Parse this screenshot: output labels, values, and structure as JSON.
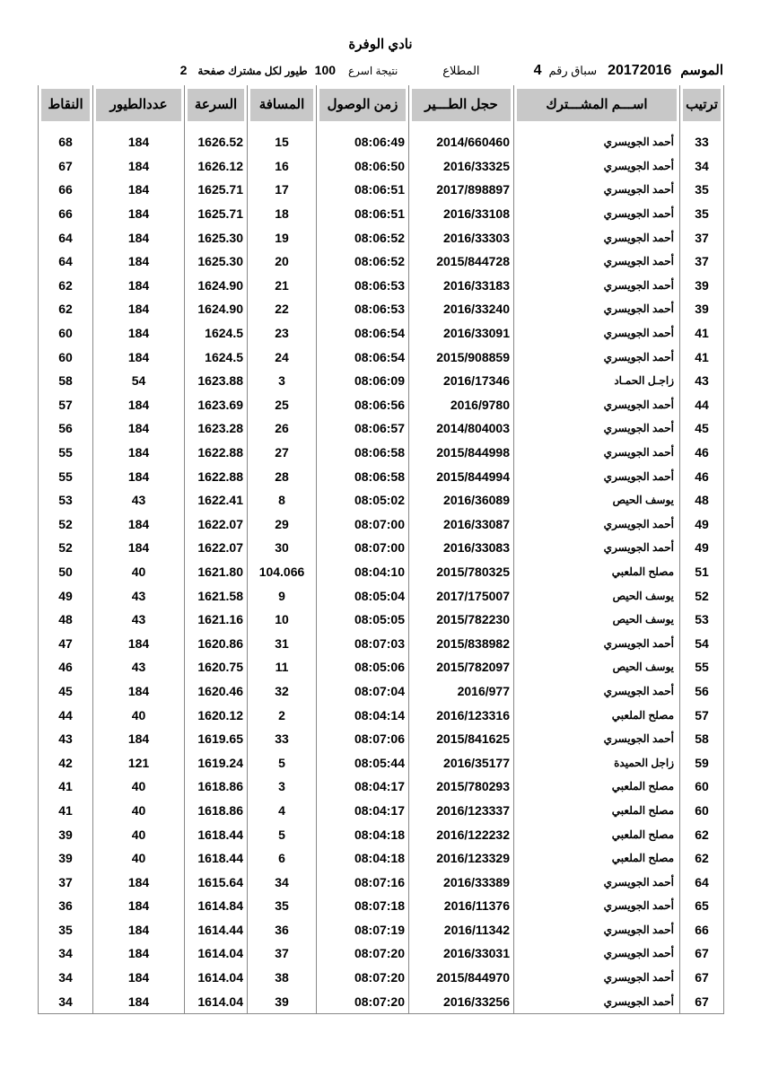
{
  "title": "نادي الوفرة",
  "info": {
    "season_label": "الموسم",
    "season": "20172016",
    "race_label": "سباق رقم",
    "race": "4",
    "release_label": "المطلاع",
    "result_label": "نتيجة اسرع",
    "birds_count": "100",
    "birds_label": "طيور لكل مشترك صفحة",
    "page": "2"
  },
  "columns": [
    "النقاط",
    "عددالطيور",
    "السرعة",
    "المسافة",
    "زمن الوصول",
    "حجل الطـــير",
    "اســـم المشـــترك",
    "ترتيب"
  ],
  "rows": [
    [
      "68",
      "184",
      "1626.52",
      "15",
      "08:06:49",
      "2014/660460",
      "أحمد الجويسري",
      "33"
    ],
    [
      "67",
      "184",
      "1626.12",
      "16",
      "08:06:50",
      "2016/33325",
      "أحمد الجويسري",
      "34"
    ],
    [
      "66",
      "184",
      "1625.71",
      "17",
      "08:06:51",
      "2017/898897",
      "أحمد الجويسري",
      "35"
    ],
    [
      "66",
      "184",
      "1625.71",
      "18",
      "08:06:51",
      "2016/33108",
      "أحمد الجويسري",
      "35"
    ],
    [
      "64",
      "184",
      "1625.30",
      "19",
      "08:06:52",
      "2016/33303",
      "أحمد الجويسري",
      "37"
    ],
    [
      "64",
      "184",
      "1625.30",
      "20",
      "08:06:52",
      "2015/844728",
      "أحمد الجويسري",
      "37"
    ],
    [
      "62",
      "184",
      "1624.90",
      "21",
      "08:06:53",
      "2016/33183",
      "أحمد الجويسري",
      "39"
    ],
    [
      "62",
      "184",
      "1624.90",
      "22",
      "08:06:53",
      "2016/33240",
      "أحمد الجويسري",
      "39"
    ],
    [
      "60",
      "184",
      "1624.5",
      "23",
      "08:06:54",
      "2016/33091",
      "أحمد الجويسري",
      "41"
    ],
    [
      "60",
      "184",
      "1624.5",
      "24",
      "08:06:54",
      "2015/908859",
      "أحمد الجويسري",
      "41"
    ],
    [
      "58",
      "54",
      "1623.88",
      "3",
      "08:06:09",
      "2016/17346",
      "زاجـل الحمـاد",
      "43"
    ],
    [
      "57",
      "184",
      "1623.69",
      "25",
      "08:06:56",
      "2016/9780",
      "أحمد الجويسري",
      "44"
    ],
    [
      "56",
      "184",
      "1623.28",
      "26",
      "08:06:57",
      "2014/804003",
      "أحمد الجويسري",
      "45"
    ],
    [
      "55",
      "184",
      "1622.88",
      "27",
      "08:06:58",
      "2015/844998",
      "أحمد الجويسري",
      "46"
    ],
    [
      "55",
      "184",
      "1622.88",
      "28",
      "08:06:58",
      "2015/844994",
      "أحمد الجويسري",
      "46"
    ],
    [
      "53",
      "43",
      "1622.41",
      "8",
      "08:05:02",
      "2016/36089",
      "يوسف الحيص",
      "48"
    ],
    [
      "52",
      "184",
      "1622.07",
      "29",
      "08:07:00",
      "2016/33087",
      "أحمد الجويسري",
      "49"
    ],
    [
      "52",
      "184",
      "1622.07",
      "30",
      "08:07:00",
      "2016/33083",
      "أحمد الجويسري",
      "49"
    ],
    [
      "50",
      "40",
      "1621.80",
      "104.066",
      "08:04:10",
      "2015/780325",
      "مصلح الملعبي",
      "51"
    ],
    [
      "49",
      "43",
      "1621.58",
      "9",
      "08:05:04",
      "2017/175007",
      "يوسف الحيص",
      "52"
    ],
    [
      "48",
      "43",
      "1621.16",
      "10",
      "08:05:05",
      "2015/782230",
      "يوسف الحيص",
      "53"
    ],
    [
      "47",
      "184",
      "1620.86",
      "31",
      "08:07:03",
      "2015/838982",
      "أحمد الجويسري",
      "54"
    ],
    [
      "46",
      "43",
      "1620.75",
      "11",
      "08:05:06",
      "2015/782097",
      "يوسف الحيص",
      "55"
    ],
    [
      "45",
      "184",
      "1620.46",
      "32",
      "08:07:04",
      "2016/977",
      "أحمد الجويسري",
      "56"
    ],
    [
      "44",
      "40",
      "1620.12",
      "2",
      "08:04:14",
      "2016/123316",
      "مصلح الملعبي",
      "57"
    ],
    [
      "43",
      "184",
      "1619.65",
      "33",
      "08:07:06",
      "2015/841625",
      "أحمد الجويسري",
      "58"
    ],
    [
      "42",
      "121",
      "1619.24",
      "5",
      "08:05:44",
      "2016/35177",
      "زاجل الحميدة",
      "59"
    ],
    [
      "41",
      "40",
      "1618.86",
      "3",
      "08:04:17",
      "2015/780293",
      "مصلح الملعبي",
      "60"
    ],
    [
      "41",
      "40",
      "1618.86",
      "4",
      "08:04:17",
      "2016/123337",
      "مصلح الملعبي",
      "60"
    ],
    [
      "39",
      "40",
      "1618.44",
      "5",
      "08:04:18",
      "2016/122232",
      "مصلح الملعبي",
      "62"
    ],
    [
      "39",
      "40",
      "1618.44",
      "6",
      "08:04:18",
      "2016/123329",
      "مصلح الملعبي",
      "62"
    ],
    [
      "37",
      "184",
      "1615.64",
      "34",
      "08:07:16",
      "2016/33389",
      "أحمد الجويسري",
      "64"
    ],
    [
      "36",
      "184",
      "1614.84",
      "35",
      "08:07:18",
      "2016/11376",
      "أحمد الجويسري",
      "65"
    ],
    [
      "35",
      "184",
      "1614.44",
      "36",
      "08:07:19",
      "2016/11342",
      "أحمد الجويسري",
      "66"
    ],
    [
      "34",
      "184",
      "1614.04",
      "37",
      "08:07:20",
      "2016/33031",
      "أحمد الجويسري",
      "67"
    ],
    [
      "34",
      "184",
      "1614.04",
      "38",
      "08:07:20",
      "2015/844970",
      "أحمد الجويسري",
      "67"
    ],
    [
      "34",
      "184",
      "1614.04",
      "39",
      "08:07:20",
      "2016/33256",
      "أحمد الجويسري",
      "67"
    ]
  ]
}
